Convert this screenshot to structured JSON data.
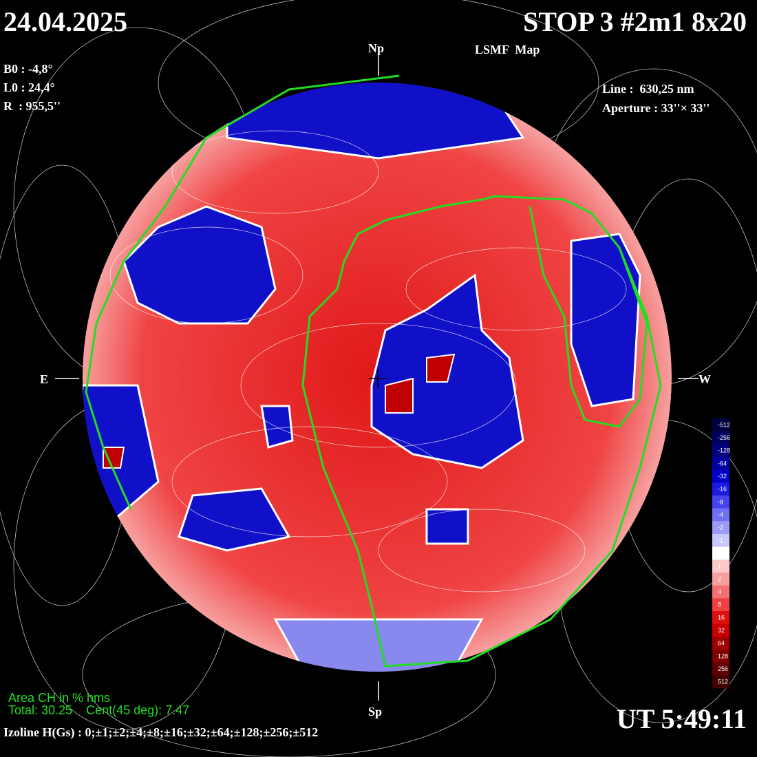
{
  "header": {
    "date": "24.04.2025",
    "title": "STOP 3 #2m1 8x20",
    "subtitle": "LSMF  Map",
    "b0": "B0 : -4,8°",
    "l0": "L0 : 24,4°",
    "radius": "R  : 955,5''",
    "line": "Line :  630,25 nm",
    "aperture": "Aperture : 33''× 33''"
  },
  "disk": {
    "north": "Np",
    "south": "Sp",
    "east": "E",
    "west": "W"
  },
  "colorbar": {
    "labels": [
      -512,
      -256,
      -128,
      -64,
      -32,
      -16,
      -8,
      -4,
      -2,
      -1,
      0,
      1,
      2,
      4,
      8,
      16,
      32,
      64,
      128,
      256,
      512
    ],
    "colors": [
      "#000040",
      "#00005e",
      "#00007e",
      "#0000a0",
      "#0000c8",
      "#1a1ae0",
      "#4444ee",
      "#7070f4",
      "#9c9cf8",
      "#c8c8fc",
      "#ffffff",
      "#fcc8c8",
      "#f8a0a0",
      "#f47070",
      "#ee4040",
      "#e01010",
      "#c80000",
      "#a00000",
      "#7e0000",
      "#5e0000",
      "#400000"
    ]
  },
  "footer": {
    "area_title": "Area CH in % hms",
    "area_values": "Total: 30.25    Cent(45 deg): 7.47",
    "izoline": "Izoline H(Gs) : 0;±1;±2;±4;±8;±16;±32;±64;±128;±256;±512",
    "time": "UT 5:49:11"
  }
}
